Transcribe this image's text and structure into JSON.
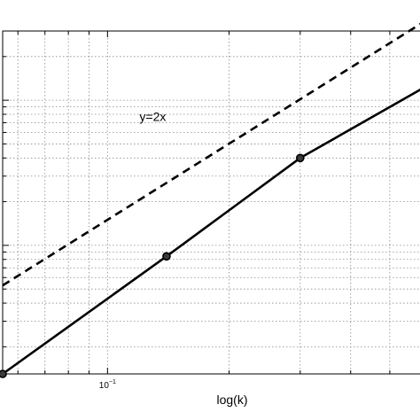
{
  "chart_data": {
    "type": "line",
    "xlabel": "log(k)",
    "xscale": "log",
    "yscale": "log",
    "xlim": [
      0.055,
      0.6
    ],
    "ylim": [
      0.0013,
      0.3
    ],
    "grid": true,
    "x_tick_labels": [
      {
        "value": 0.1,
        "base": "10",
        "exponent": "−1"
      }
    ],
    "series": [
      {
        "style": "solid",
        "color": "#000000",
        "markers": "circle",
        "points": [
          [
            0.055,
            0.0013
          ],
          [
            0.14,
            0.0084
          ],
          [
            0.3,
            0.04
          ],
          [
            0.6,
            0.12
          ]
        ],
        "marker_points": [
          [
            0.055,
            0.0013
          ],
          [
            0.14,
            0.0084
          ],
          [
            0.3,
            0.04
          ]
        ]
      },
      {
        "style": "dashed",
        "color": "#000000",
        "points": [
          [
            0.055,
            0.0053
          ],
          [
            0.6,
            0.34
          ]
        ]
      }
    ],
    "annotations": [
      {
        "text": "y=2x",
        "x": 0.12,
        "y": 0.072
      }
    ]
  }
}
